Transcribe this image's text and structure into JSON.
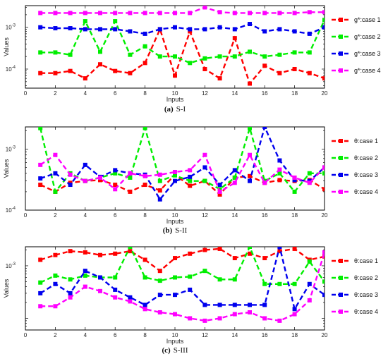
{
  "chart_data": [
    {
      "type": "line",
      "caption": {
        "letter": "(a)",
        "text": "S-I"
      },
      "xlabel": "Inputs",
      "ylabel": "Values",
      "xlim": [
        0,
        20
      ],
      "xticks": [
        "0",
        "2",
        "4",
        "6",
        "8",
        "10",
        "12",
        "14",
        "16",
        "18",
        "20"
      ],
      "yscale": "log",
      "ylim": [
        3.5e-05,
        0.0033
      ],
      "ytick_labels": [
        {
          "base": "10",
          "exp": "-3",
          "value": 0.001
        },
        {
          "base": "10",
          "exp": "-4",
          "value": 0.0001
        }
      ],
      "grid": false,
      "legend_position": "right-outside",
      "series": [
        {
          "name": "g*:case 1",
          "color": "#ff0000",
          "x": [
            1,
            2,
            3,
            4,
            5,
            6,
            7,
            8,
            9,
            10,
            11,
            12,
            13,
            14,
            15,
            16,
            17,
            18,
            19,
            20
          ],
          "y": [
            8e-05,
            8e-05,
            9e-05,
            6e-05,
            0.00013,
            9e-05,
            8e-05,
            0.00014,
            0.0009,
            7e-05,
            0.0008,
            0.0001,
            6e-05,
            0.00055,
            4.5e-05,
            0.00012,
            8e-05,
            0.0001,
            8e-05,
            6e-05
          ]
        },
        {
          "name": "g*:case 2",
          "color": "#00ee00",
          "x": [
            1,
            2,
            3,
            4,
            5,
            6,
            7,
            8,
            9,
            10,
            11,
            12,
            13,
            14,
            15,
            16,
            17,
            18,
            19,
            20
          ],
          "y": [
            0.00025,
            0.00025,
            0.00022,
            0.0014,
            0.00026,
            0.0014,
            0.00022,
            0.00035,
            0.0002,
            0.0002,
            0.00014,
            0.00018,
            0.0002,
            0.0002,
            0.00026,
            0.0002,
            0.00022,
            0.00025,
            0.00025,
            0.0015
          ]
        },
        {
          "name": "g*:case 3",
          "color": "#0000ee",
          "x": [
            1,
            2,
            3,
            4,
            5,
            6,
            7,
            8,
            9,
            10,
            11,
            12,
            13,
            14,
            15,
            16,
            17,
            18,
            19,
            20
          ],
          "y": [
            0.001,
            0.00095,
            0.00095,
            0.0009,
            0.0009,
            0.0009,
            0.0008,
            0.0007,
            0.0009,
            0.001,
            0.0009,
            0.0009,
            0.001,
            0.0009,
            0.0012,
            0.0008,
            0.0009,
            0.0008,
            0.0007,
            0.001
          ]
        },
        {
          "name": "g*:case 4",
          "color": "#ff00ff",
          "x": [
            1,
            2,
            3,
            4,
            5,
            6,
            7,
            8,
            9,
            10,
            11,
            12,
            13,
            14,
            15,
            16,
            17,
            18,
            19,
            20
          ],
          "y": [
            0.0022,
            0.0022,
            0.0022,
            0.0022,
            0.0022,
            0.0022,
            0.0022,
            0.0022,
            0.0022,
            0.0022,
            0.0022,
            0.003,
            0.0023,
            0.0022,
            0.0022,
            0.0022,
            0.0022,
            0.0022,
            0.0023,
            0.0023
          ]
        }
      ]
    },
    {
      "type": "line",
      "caption": {
        "letter": "(b)",
        "text": "S-II"
      },
      "xlabel": "Inputs",
      "ylabel": "Values",
      "xlim": [
        0,
        20
      ],
      "xticks": [
        "0",
        "2",
        "4",
        "6",
        "8",
        "10",
        "12",
        "14",
        "16",
        "18",
        "20"
      ],
      "yscale": "log",
      "ylim": [
        0.0001,
        0.0023
      ],
      "ytick_labels": [
        {
          "base": "10",
          "exp": "-3",
          "value": 0.001
        },
        {
          "base": "10",
          "exp": "-4",
          "value": 0.0001
        }
      ],
      "grid": false,
      "legend_position": "right-outside",
      "series": [
        {
          "name": "θ:case 1",
          "color": "#ff0000",
          "x": [
            1,
            2,
            3,
            4,
            5,
            6,
            7,
            8,
            9,
            10,
            11,
            12,
            13,
            14,
            15,
            16,
            17,
            18,
            19,
            20
          ],
          "y": [
            0.00026,
            0.0002,
            0.00028,
            0.0003,
            0.00031,
            0.00026,
            0.0002,
            0.00026,
            0.00021,
            0.00038,
            0.00025,
            0.0003,
            0.00018,
            0.00034,
            0.00036,
            0.00028,
            0.00031,
            0.0003,
            0.00031,
            0.00022
          ]
        },
        {
          "name": "θ:case 2",
          "color": "#00ee00",
          "x": [
            1,
            2,
            3,
            4,
            5,
            6,
            7,
            8,
            9,
            10,
            11,
            12,
            13,
            14,
            15,
            16,
            17,
            18,
            19,
            20
          ],
          "y": [
            0.0022,
            0.0002,
            0.0004,
            0.0003,
            0.00034,
            0.0004,
            0.00034,
            0.0022,
            0.0003,
            0.00037,
            0.0003,
            0.0003,
            0.00022,
            0.00034,
            0.0022,
            0.0003,
            0.0004,
            0.0002,
            0.0004,
            0.0004
          ]
        },
        {
          "name": "θ:case 3",
          "color": "#0000ee",
          "x": [
            1,
            2,
            3,
            4,
            5,
            6,
            7,
            8,
            9,
            10,
            11,
            12,
            13,
            14,
            15,
            16,
            17,
            18,
            19,
            20
          ],
          "y": [
            0.00033,
            0.0004,
            0.00026,
            0.00055,
            0.00035,
            0.00045,
            0.0004,
            0.00038,
            0.00015,
            0.0003,
            0.00035,
            0.0005,
            0.00026,
            0.00045,
            0.0003,
            0.0023,
            0.00065,
            0.00031,
            0.0003,
            0.0005
          ]
        },
        {
          "name": "θ:case 4",
          "color": "#ff00ff",
          "x": [
            1,
            2,
            3,
            4,
            5,
            6,
            7,
            8,
            9,
            10,
            11,
            12,
            13,
            14,
            15,
            16,
            17,
            18,
            19,
            20
          ],
          "y": [
            0.00055,
            0.0008,
            0.00038,
            0.0003,
            0.00034,
            0.00022,
            0.0004,
            0.00036,
            0.00038,
            0.00042,
            0.00045,
            0.0008,
            0.0002,
            0.00028,
            0.0008,
            0.00028,
            0.00046,
            0.00034,
            0.00028,
            0.0005
          ]
        }
      ]
    },
    {
      "type": "line",
      "caption": {
        "letter": "(c)",
        "text": "S-III"
      },
      "xlabel": "Inputs",
      "ylabel": "Values",
      "xlim": [
        0,
        20
      ],
      "xticks": [
        "0",
        "2",
        "4",
        "6",
        "8",
        "10",
        "12",
        "14",
        "16",
        "18",
        "20"
      ],
      "yscale": "log",
      "ylim": [
        6e-05,
        0.0023
      ],
      "ytick_labels": [
        {
          "base": "10",
          "exp": "-3",
          "value": 0.001
        }
      ],
      "grid": false,
      "legend_position": "right-outside",
      "series": [
        {
          "name": "θ:case 1",
          "color": "#ff0000",
          "x": [
            1,
            2,
            3,
            4,
            5,
            6,
            7,
            8,
            9,
            10,
            11,
            12,
            13,
            14,
            15,
            16,
            17,
            18,
            19,
            20
          ],
          "y": [
            0.0013,
            0.0016,
            0.0019,
            0.0018,
            0.0016,
            0.0017,
            0.0019,
            0.0013,
            0.0008,
            0.0014,
            0.0017,
            0.002,
            0.0021,
            0.0014,
            0.0017,
            0.0014,
            0.0019,
            0.0021,
            0.0013,
            0.0015
          ]
        },
        {
          "name": "θ:case 2",
          "color": "#00ee00",
          "x": [
            1,
            2,
            3,
            4,
            5,
            6,
            7,
            8,
            9,
            10,
            11,
            12,
            13,
            14,
            15,
            16,
            17,
            18,
            19,
            20
          ],
          "y": [
            0.00048,
            0.00065,
            0.00055,
            0.00065,
            0.0006,
            0.0006,
            0.0023,
            0.0006,
            0.00052,
            0.0006,
            0.00062,
            0.0008,
            0.00055,
            0.00055,
            0.0023,
            0.00045,
            0.00045,
            0.00045,
            0.0012,
            0.0005
          ]
        },
        {
          "name": "θ:case 3",
          "color": "#0000ee",
          "x": [
            1,
            2,
            3,
            4,
            5,
            6,
            7,
            8,
            9,
            10,
            11,
            12,
            13,
            14,
            15,
            16,
            17,
            18,
            19,
            20
          ],
          "y": [
            0.0003,
            0.00045,
            0.0003,
            0.0008,
            0.0006,
            0.00035,
            0.00025,
            0.00018,
            0.00028,
            0.00028,
            0.00035,
            0.00018,
            0.00018,
            0.00018,
            0.00018,
            0.00018,
            0.0023,
            0.00015,
            0.00045,
            0.00028
          ]
        },
        {
          "name": "θ:case 4",
          "color": "#ff00ff",
          "x": [
            1,
            2,
            3,
            4,
            5,
            6,
            7,
            8,
            9,
            10,
            11,
            12,
            13,
            14,
            15,
            16,
            17,
            18,
            19,
            20
          ],
          "y": [
            0.00017,
            0.00017,
            0.00025,
            0.0004,
            0.00033,
            0.00025,
            0.00021,
            0.00015,
            0.00013,
            0.00012,
            0.0001,
            9e-05,
            0.0001,
            0.00012,
            0.00013,
            0.0001,
            9e-05,
            0.00012,
            0.00022,
            0.0018
          ]
        }
      ]
    }
  ]
}
